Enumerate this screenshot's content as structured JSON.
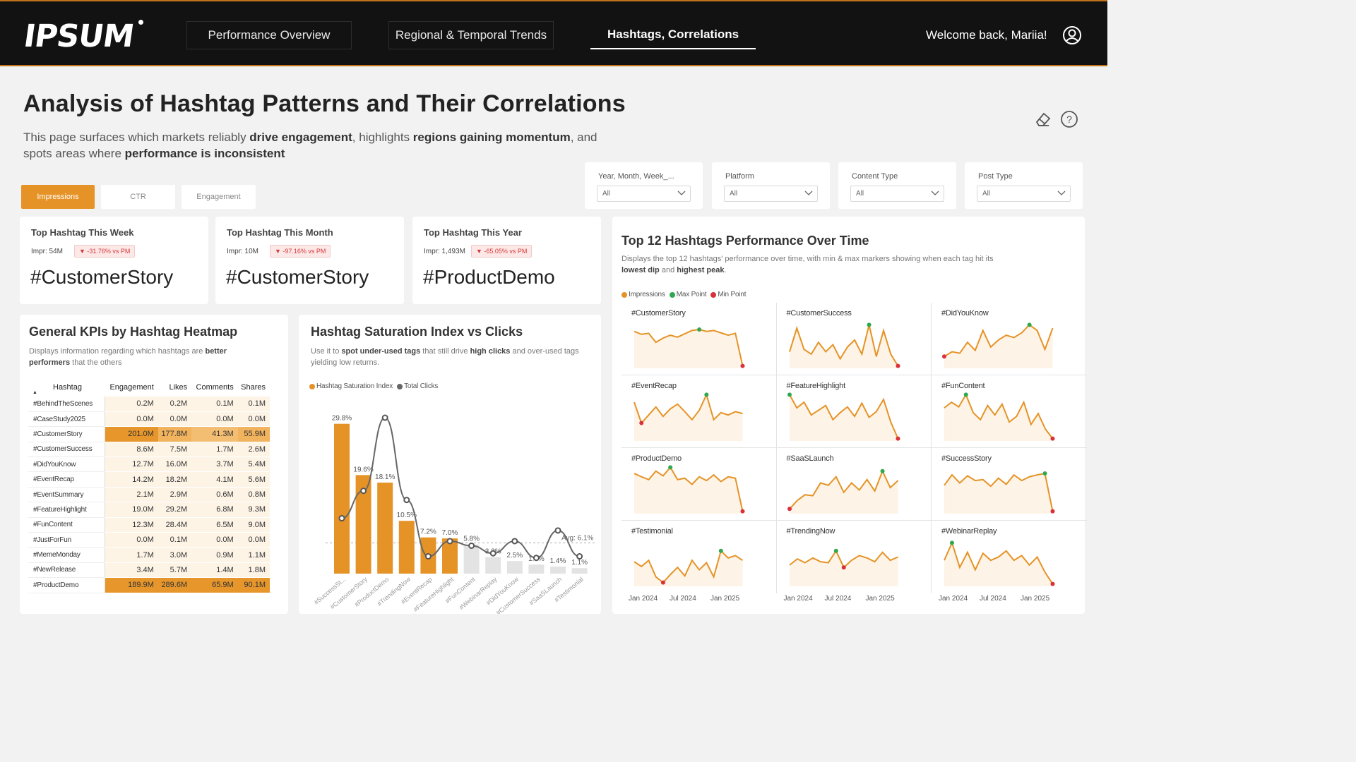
{
  "header": {
    "logo": "IPSUM",
    "tabs": [
      {
        "label": "Performance Overview",
        "active": false
      },
      {
        "label": "Regional & Temporal Trends",
        "active": false
      },
      {
        "label": "Hashtags, Correlations",
        "active": true
      }
    ],
    "welcome": "Welcome back, Mariia!",
    "user_icon": "user-circle-icon"
  },
  "page": {
    "title": "Analysis of Hashtag Patterns and Their Correlations",
    "description": {
      "p1": "This page surfaces which markets reliably ",
      "b1": "drive engagement",
      "p2": ", highlights ",
      "b2": "regions gaining momentum",
      "p3": ", and spots areas where ",
      "b3": "performance is inconsistent"
    },
    "tools": [
      "eraser-icon",
      "help-icon"
    ]
  },
  "measure_tabs": [
    {
      "label": "Impressions",
      "active": true
    },
    {
      "label": "CTR",
      "active": false
    },
    {
      "label": "Engagement",
      "active": false
    }
  ],
  "filters": [
    {
      "label": "Year, Month, Week_...",
      "value": "All"
    },
    {
      "label": "Platform",
      "value": "All"
    },
    {
      "label": "Content Type",
      "value": "All"
    },
    {
      "label": "Post Type",
      "value": "All"
    }
  ],
  "top_hashtags": [
    {
      "label": "Top Hashtag This Week",
      "impr": "Impr: 54M",
      "change": "▼ -31.76% vs PM",
      "value": "#CustomerStory"
    },
    {
      "label": "Top Hashtag This Month",
      "impr": "Impr: 10M",
      "change": "▼ -97.16% vs PM",
      "value": "#CustomerStory"
    },
    {
      "label": "Top Hashtag This Year",
      "impr": "Impr: 1,493M",
      "change": "▼ -65.05% vs PM",
      "value": "#ProductDemo"
    }
  ],
  "heatmap": {
    "title": "General KPIs by Hashtag Heatmap",
    "subtitle_p1": "Displays information regarding which hashtags are ",
    "subtitle_b1": "better performers",
    "subtitle_p2": " that the others",
    "columns": [
      "Hashtag",
      "Engagement",
      "Likes",
      "Comments",
      "Shares"
    ],
    "rows": [
      {
        "tag": "#BehindTheScenes",
        "engagement": "0.2M",
        "likes": "0.2M",
        "comments": "0.1M",
        "shares": "0.1M"
      },
      {
        "tag": "#CaseStudy2025",
        "engagement": "0.0M",
        "likes": "0.0M",
        "comments": "0.0M",
        "shares": "0.0M"
      },
      {
        "tag": "#CustomerStory",
        "engagement": "201.0M",
        "likes": "177.8M",
        "comments": "41.3M",
        "shares": "55.9M",
        "hot": true
      },
      {
        "tag": "#CustomerSuccess",
        "engagement": "8.6M",
        "likes": "7.5M",
        "comments": "1.7M",
        "shares": "2.6M"
      },
      {
        "tag": "#DidYouKnow",
        "engagement": "12.7M",
        "likes": "16.0M",
        "comments": "3.7M",
        "shares": "5.4M"
      },
      {
        "tag": "#EventRecap",
        "engagement": "14.2M",
        "likes": "18.2M",
        "comments": "4.1M",
        "shares": "5.6M"
      },
      {
        "tag": "#EventSummary",
        "engagement": "2.1M",
        "likes": "2.9M",
        "comments": "0.6M",
        "shares": "0.8M"
      },
      {
        "tag": "#FeatureHighlight",
        "engagement": "19.0M",
        "likes": "29.2M",
        "comments": "6.8M",
        "shares": "9.3M"
      },
      {
        "tag": "#FunContent",
        "engagement": "12.3M",
        "likes": "28.4M",
        "comments": "6.5M",
        "shares": "9.0M"
      },
      {
        "tag": "#JustForFun",
        "engagement": "0.0M",
        "likes": "0.1M",
        "comments": "0.0M",
        "shares": "0.0M"
      },
      {
        "tag": "#MemeMonday",
        "engagement": "1.7M",
        "likes": "3.0M",
        "comments": "0.9M",
        "shares": "1.1M"
      },
      {
        "tag": "#NewRelease",
        "engagement": "3.4M",
        "likes": "5.7M",
        "comments": "1.4M",
        "shares": "1.8M"
      },
      {
        "tag": "#ProductDemo",
        "engagement": "189.9M",
        "likes": "289.6M",
        "comments": "65.9M",
        "shares": "90.1M",
        "hot": true
      }
    ]
  },
  "saturation": {
    "title": "Hashtag Saturation Index vs Clicks",
    "subtitle_p1": "Use it to ",
    "subtitle_b1": "spot under-used tags",
    "subtitle_p2": " that still drive ",
    "subtitle_b2": "high clicks",
    "subtitle_p3": " and over-used tags yielding low returns.",
    "legend": [
      "Hashtag Saturation Index",
      "Total Clicks"
    ],
    "avg_label": "Avg: 6.1%"
  },
  "small_multiples": {
    "title": "Top 12 Hashtags Performance Over Time",
    "subtitle_p1": "Displays the top 12 hashtags' performance over time, with min & max markers showing when each tag hit its ",
    "subtitle_b1": "lowest dip",
    "subtitle_p2": " and ",
    "subtitle_b2": "highest peak",
    "subtitle_p3": ".",
    "legend": [
      "Impressions",
      "Max Point",
      "Min Point"
    ],
    "x_ticks": [
      "Jan 2024",
      "Jul 2024",
      "Jan 2025"
    ]
  },
  "colors": {
    "accent": "#e59326",
    "bar": "#e59326",
    "bar_faded": "#e3e3e3",
    "line": "#666666",
    "max_point": "#2fa84f",
    "min_point": "#d9303a",
    "area": "#fdf3e6"
  },
  "chart_data": [
    {
      "type": "bar",
      "title": "Hashtag Saturation Index vs Clicks",
      "categories": [
        "#SuccessSt...",
        "#CustomerStory",
        "#ProductDemo",
        "#TrendingNow",
        "#EventRecap",
        "#FeatureHighlight",
        "#FunContent",
        "#WebinarReplay",
        "#DidYouKnow",
        "#CustomerSuccess",
        "#SaaSLaunch",
        "#Testimonial"
      ],
      "series": [
        {
          "name": "Hashtag Saturation Index",
          "values": [
            29.8,
            19.6,
            18.1,
            10.5,
            7.2,
            7.0,
            5.8,
            3.3,
            2.5,
            1.8,
            1.4,
            1.1
          ]
        },
        {
          "name": "Total Clicks",
          "values": [
            0.34,
            0.52,
            1.0,
            0.46,
            0.09,
            0.19,
            0.16,
            0.11,
            0.19,
            0.08,
            0.26,
            0.09
          ]
        }
      ],
      "value_labels": [
        "29.8%",
        "19.6%",
        "18.1%",
        "10.5%",
        "7.2%",
        "7.0%",
        "5.8%",
        "3.3%",
        "2.5%",
        "1.8%",
        "1.4%",
        "1.1%"
      ],
      "average": 6.1,
      "ylim": [
        0,
        32
      ]
    },
    {
      "type": "line",
      "title": "Top 12 Hashtags Performance Over Time",
      "series": [
        {
          "name": "#CustomerStory",
          "values": [
            0.78,
            0.72,
            0.74,
            0.55,
            0.64,
            0.7,
            0.66,
            0.73,
            0.8,
            0.82,
            0.78,
            0.8,
            0.75,
            0.7,
            0.74,
            0.05
          ]
        },
        {
          "name": "#CustomerSuccess",
          "values": [
            0.35,
            0.85,
            0.4,
            0.3,
            0.55,
            0.35,
            0.5,
            0.2,
            0.45,
            0.6,
            0.3,
            0.92,
            0.25,
            0.8,
            0.3,
            0.05
          ]
        },
        {
          "name": "#DidYouKnow",
          "values": [
            0.25,
            0.35,
            0.32,
            0.55,
            0.38,
            0.8,
            0.45,
            0.6,
            0.7,
            0.65,
            0.75,
            0.92,
            0.8,
            0.4,
            0.85
          ]
        },
        {
          "name": "#EventRecap",
          "values": [
            0.82,
            0.38,
            0.55,
            0.72,
            0.52,
            0.68,
            0.78,
            0.62,
            0.45,
            0.65,
            0.98,
            0.45,
            0.6,
            0.55,
            0.62,
            0.58
          ]
        },
        {
          "name": "#FeatureHighlight",
          "values": [
            0.98,
            0.7,
            0.82,
            0.55,
            0.65,
            0.75,
            0.45,
            0.6,
            0.72,
            0.52,
            0.8,
            0.5,
            0.62,
            0.88,
            0.4,
            0.05
          ]
        },
        {
          "name": "#FunContent",
          "values": [
            0.7,
            0.82,
            0.72,
            0.98,
            0.6,
            0.45,
            0.75,
            0.55,
            0.78,
            0.4,
            0.52,
            0.82,
            0.35,
            0.58,
            0.25,
            0.05
          ]
        },
        {
          "name": "#ProductDemo",
          "values": [
            0.85,
            0.78,
            0.72,
            0.9,
            0.8,
            0.98,
            0.72,
            0.75,
            0.62,
            0.78,
            0.7,
            0.82,
            0.68,
            0.78,
            0.75,
            0.05
          ]
        },
        {
          "name": "#SaaSLaunch",
          "values": [
            0.1,
            0.28,
            0.4,
            0.38,
            0.65,
            0.6,
            0.78,
            0.45,
            0.65,
            0.5,
            0.72,
            0.48,
            0.9,
            0.55,
            0.7
          ]
        },
        {
          "name": "#SuccessStory",
          "values": [
            0.6,
            0.82,
            0.65,
            0.8,
            0.7,
            0.72,
            0.58,
            0.75,
            0.62,
            0.82,
            0.7,
            0.78,
            0.82,
            0.85,
            0.05
          ]
        },
        {
          "name": "#Testimonial",
          "values": [
            0.52,
            0.42,
            0.55,
            0.2,
            0.08,
            0.25,
            0.4,
            0.22,
            0.55,
            0.35,
            0.5,
            0.2,
            0.75,
            0.6,
            0.65,
            0.55
          ]
        },
        {
          "name": "#TrendingNow",
          "values": [
            0.45,
            0.58,
            0.5,
            0.6,
            0.52,
            0.5,
            0.75,
            0.4,
            0.55,
            0.65,
            0.6,
            0.52,
            0.72,
            0.55,
            0.62
          ]
        },
        {
          "name": "#WebinarReplay",
          "values": [
            0.55,
            0.92,
            0.4,
            0.72,
            0.35,
            0.7,
            0.55,
            0.62,
            0.75,
            0.55,
            0.65,
            0.45,
            0.62,
            0.3,
            0.05
          ]
        }
      ],
      "x_ticks": [
        "Jan 2024",
        "Jul 2024",
        "Jan 2025"
      ]
    }
  ]
}
